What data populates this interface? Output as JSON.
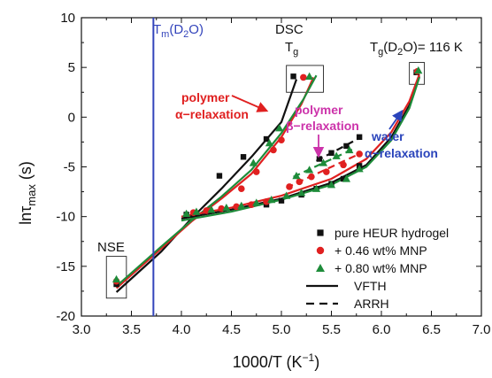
{
  "chart_data": {
    "type": "scatter",
    "xlabel": "1000/T (K",
    "xlabel_sup": "−1",
    "xlabel_end": ")",
    "ylabel_main": "lnτ",
    "ylabel_sub": "max",
    "ylabel_unit": " (s)",
    "xlim": [
      3.0,
      7.0
    ],
    "ylim": [
      -20,
      10
    ],
    "xticks": [
      3.0,
      3.5,
      4.0,
      4.5,
      5.0,
      5.5,
      6.0,
      6.5,
      7.0
    ],
    "yticks": [
      -20,
      -15,
      -10,
      -5,
      0,
      5,
      10
    ],
    "xtick_labels": [
      "3.0",
      "3.5",
      "4.0",
      "4.5",
      "5.0",
      "5.5",
      "6.0",
      "6.5",
      "7.0"
    ],
    "ytick_labels": [
      "-20",
      "-15",
      "-10",
      "-5",
      "0",
      "5",
      "10"
    ],
    "tm_line": {
      "x": 3.72,
      "label_main": "T",
      "label_sub": "m",
      "label_rest": "(D",
      "label_sub2": "2",
      "label_end": "O)",
      "color": "#3344bb"
    },
    "series": [
      {
        "name": "pure HEUR hydrogel",
        "marker": "square",
        "color": "#111111",
        "points": [
          [
            3.35,
            -16.8
          ],
          [
            4.05,
            -9.8
          ],
          [
            4.12,
            -9.7
          ],
          [
            4.38,
            -5.9
          ],
          [
            4.62,
            -4.0
          ],
          [
            4.85,
            -2.2
          ],
          [
            5.12,
            4.1
          ],
          [
            4.85,
            -8.8
          ],
          [
            5.0,
            -8.4
          ],
          [
            5.2,
            -7.8
          ],
          [
            5.35,
            -7.2
          ],
          [
            5.5,
            -6.7
          ],
          [
            5.62,
            -6.2
          ],
          [
            5.78,
            -4.9
          ],
          [
            6.35,
            4.5
          ],
          [
            5.38,
            -4.2
          ],
          [
            5.5,
            -3.6
          ],
          [
            5.65,
            -2.9
          ],
          [
            5.78,
            -2.0
          ]
        ]
      },
      {
        "name": "+ 0.46 wt% MNP",
        "marker": "circle",
        "color": "#e02020",
        "points": [
          [
            3.35,
            -16.5
          ],
          [
            4.12,
            -9.6
          ],
          [
            4.25,
            -9.4
          ],
          [
            4.4,
            -9.2
          ],
          [
            4.55,
            -9.0
          ],
          [
            4.7,
            -8.8
          ],
          [
            4.85,
            -8.5
          ],
          [
            4.6,
            -7.2
          ],
          [
            4.75,
            -5.5
          ],
          [
            4.92,
            -3.3
          ],
          [
            5.0,
            -2.3
          ],
          [
            5.22,
            4.0
          ],
          [
            5.08,
            -7.0
          ],
          [
            5.18,
            -6.5
          ],
          [
            5.3,
            -6.0
          ],
          [
            5.45,
            -5.5
          ],
          [
            5.62,
            -4.8
          ],
          [
            5.78,
            -3.7
          ],
          [
            6.36,
            4.6
          ]
        ]
      },
      {
        "name": "+ 0.80 wt% MNP",
        "marker": "triangle",
        "color": "#1e8c3a",
        "points": [
          [
            3.35,
            -16.3
          ],
          [
            4.05,
            -9.7
          ],
          [
            4.15,
            -9.5
          ],
          [
            4.3,
            -9.3
          ],
          [
            4.45,
            -9.1
          ],
          [
            4.6,
            -8.9
          ],
          [
            4.75,
            -8.6
          ],
          [
            4.9,
            -8.3
          ],
          [
            5.05,
            -7.9
          ],
          [
            5.2,
            -7.6
          ],
          [
            5.35,
            -7.2
          ],
          [
            5.5,
            -6.8
          ],
          [
            5.65,
            -6.2
          ],
          [
            5.78,
            -5.2
          ],
          [
            6.37,
            4.7
          ],
          [
            4.72,
            -4.6
          ],
          [
            4.88,
            -2.6
          ],
          [
            4.98,
            -1.1
          ],
          [
            5.28,
            4.1
          ],
          [
            5.15,
            -5.9
          ],
          [
            5.28,
            -5.3
          ],
          [
            5.42,
            -4.6
          ],
          [
            5.55,
            -3.9
          ],
          [
            5.68,
            -3.3
          ]
        ]
      }
    ],
    "fit_curves": [
      {
        "style": "solid",
        "color": "#111111",
        "points": [
          [
            3.35,
            -17.6
          ],
          [
            3.8,
            -13.5
          ],
          [
            4.1,
            -10.2
          ],
          [
            4.4,
            -7.2
          ],
          [
            4.7,
            -4.0
          ],
          [
            5.0,
            -0.5
          ],
          [
            5.15,
            3.8
          ]
        ]
      },
      {
        "style": "solid",
        "color": "#e02020",
        "points": [
          [
            3.35,
            -17.2
          ],
          [
            3.8,
            -13.2
          ],
          [
            4.1,
            -10.5
          ],
          [
            4.4,
            -8.2
          ],
          [
            4.7,
            -5.7
          ],
          [
            5.0,
            -2.0
          ],
          [
            5.2,
            1.3
          ],
          [
            5.32,
            4.0
          ]
        ]
      },
      {
        "style": "solid",
        "color": "#1e8c3a",
        "points": [
          [
            3.35,
            -17.0
          ],
          [
            3.8,
            -13.0
          ],
          [
            4.1,
            -10.4
          ],
          [
            4.4,
            -8.0
          ],
          [
            4.7,
            -5.3
          ],
          [
            5.0,
            -1.6
          ],
          [
            5.22,
            1.8
          ],
          [
            5.35,
            4.2
          ]
        ]
      },
      {
        "style": "solid",
        "color": "#111111",
        "points": [
          [
            4.0,
            -10.2
          ],
          [
            4.5,
            -9.3
          ],
          [
            5.0,
            -8.2
          ],
          [
            5.5,
            -6.6
          ],
          [
            5.85,
            -4.8
          ],
          [
            6.1,
            -2.0
          ],
          [
            6.28,
            1.2
          ],
          [
            6.38,
            4.1
          ]
        ]
      },
      {
        "style": "solid",
        "color": "#e02020",
        "points": [
          [
            4.0,
            -10.0
          ],
          [
            4.5,
            -9.1
          ],
          [
            5.0,
            -7.9
          ],
          [
            5.5,
            -6.2
          ],
          [
            5.85,
            -4.2
          ],
          [
            6.1,
            -1.5
          ],
          [
            6.28,
            1.6
          ],
          [
            6.38,
            4.3
          ]
        ]
      },
      {
        "style": "solid",
        "color": "#1e8c3a",
        "points": [
          [
            4.0,
            -10.4
          ],
          [
            4.5,
            -9.5
          ],
          [
            5.0,
            -8.3
          ],
          [
            5.5,
            -6.8
          ],
          [
            5.85,
            -5.0
          ],
          [
            6.1,
            -2.3
          ],
          [
            6.28,
            0.9
          ],
          [
            6.38,
            4.0
          ]
        ]
      },
      {
        "style": "dashed",
        "color": "#111111",
        "points": [
          [
            5.35,
            -4.4
          ],
          [
            5.8,
            -2.0
          ]
        ]
      },
      {
        "style": "dashed",
        "color": "#e02020",
        "points": [
          [
            5.05,
            -7.1
          ],
          [
            5.8,
            -3.6
          ]
        ]
      },
      {
        "style": "dashed",
        "color": "#1e8c3a",
        "points": [
          [
            5.12,
            -6.0
          ],
          [
            5.72,
            -3.2
          ]
        ]
      }
    ],
    "region_boxes": [
      {
        "x": [
          3.25,
          3.45
        ],
        "y": [
          -18.2,
          -14.0
        ]
      },
      {
        "x": [
          5.05,
          5.42
        ],
        "y": [
          2.5,
          5.2
        ]
      },
      {
        "x": [
          6.28,
          6.43
        ],
        "y": [
          3.3,
          5.5
        ]
      }
    ],
    "legend": {
      "position": "bottom-right",
      "marker_items": [
        {
          "label": "pure HEUR hydrogel",
          "marker": "square",
          "color": "#111111"
        },
        {
          "label": "+ 0.46 wt% MNP",
          "marker": "circle",
          "color": "#e02020"
        },
        {
          "label": "+ 0.80 wt% MNP",
          "marker": "triangle",
          "color": "#1e8c3a"
        }
      ],
      "line_items": [
        {
          "label": "VFTH",
          "style": "solid"
        },
        {
          "label": "ARRH",
          "style": "dashed"
        }
      ]
    },
    "annotations": {
      "nse": "NSE",
      "dsc_line1": "DSC",
      "dsc_line2_main": "T",
      "dsc_line2_sub": "g",
      "tg_main": "T",
      "tg_sub": "g",
      "tg_rest": "(D",
      "tg_sub2": "2",
      "tg_end": "O)= 116 K",
      "polymer_alpha_line1": "polymer",
      "polymer_alpha_line2": "α−relaxation",
      "polymer_alpha_color": "#e02020",
      "polymer_beta_line1": "polymer",
      "polymer_beta_line2": "β−relaxation",
      "polymer_beta_color": "#cc33aa",
      "water_line1": "water",
      "water_line2": "α−relaxation",
      "water_color": "#2a44bb"
    }
  }
}
